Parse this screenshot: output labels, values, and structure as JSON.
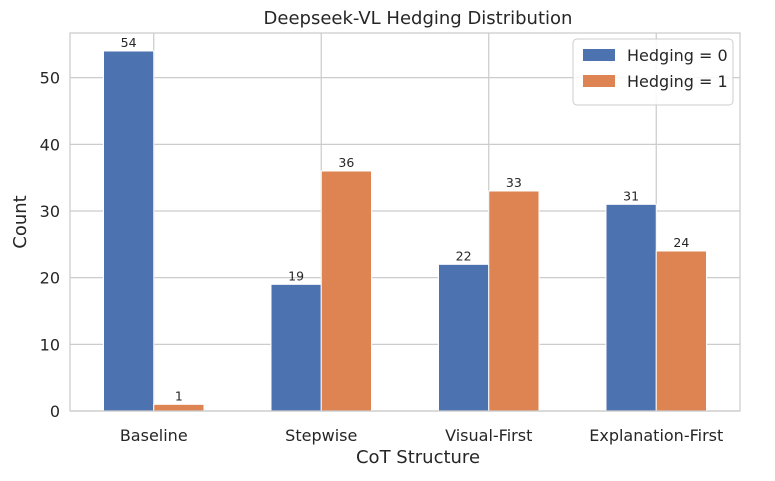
{
  "chart_data": {
    "type": "bar",
    "title": "Deepseek-VL Hedging Distribution",
    "xlabel": "CoT Structure",
    "ylabel": "Count",
    "categories": [
      "Baseline",
      "Stepwise",
      "Visual-First",
      "Explanation-First"
    ],
    "series": [
      {
        "name": "Hedging = 0",
        "values": [
          54,
          19,
          22,
          31
        ],
        "color": "#4c72b0"
      },
      {
        "name": "Hedging = 1",
        "values": [
          1,
          36,
          33,
          24
        ],
        "color": "#dd8452"
      }
    ],
    "ylim": [
      0,
      56.7
    ],
    "yticks": [
      0,
      10,
      20,
      30,
      40,
      50
    ],
    "grid": true,
    "legend_position": "top-right",
    "data_labels": true
  }
}
